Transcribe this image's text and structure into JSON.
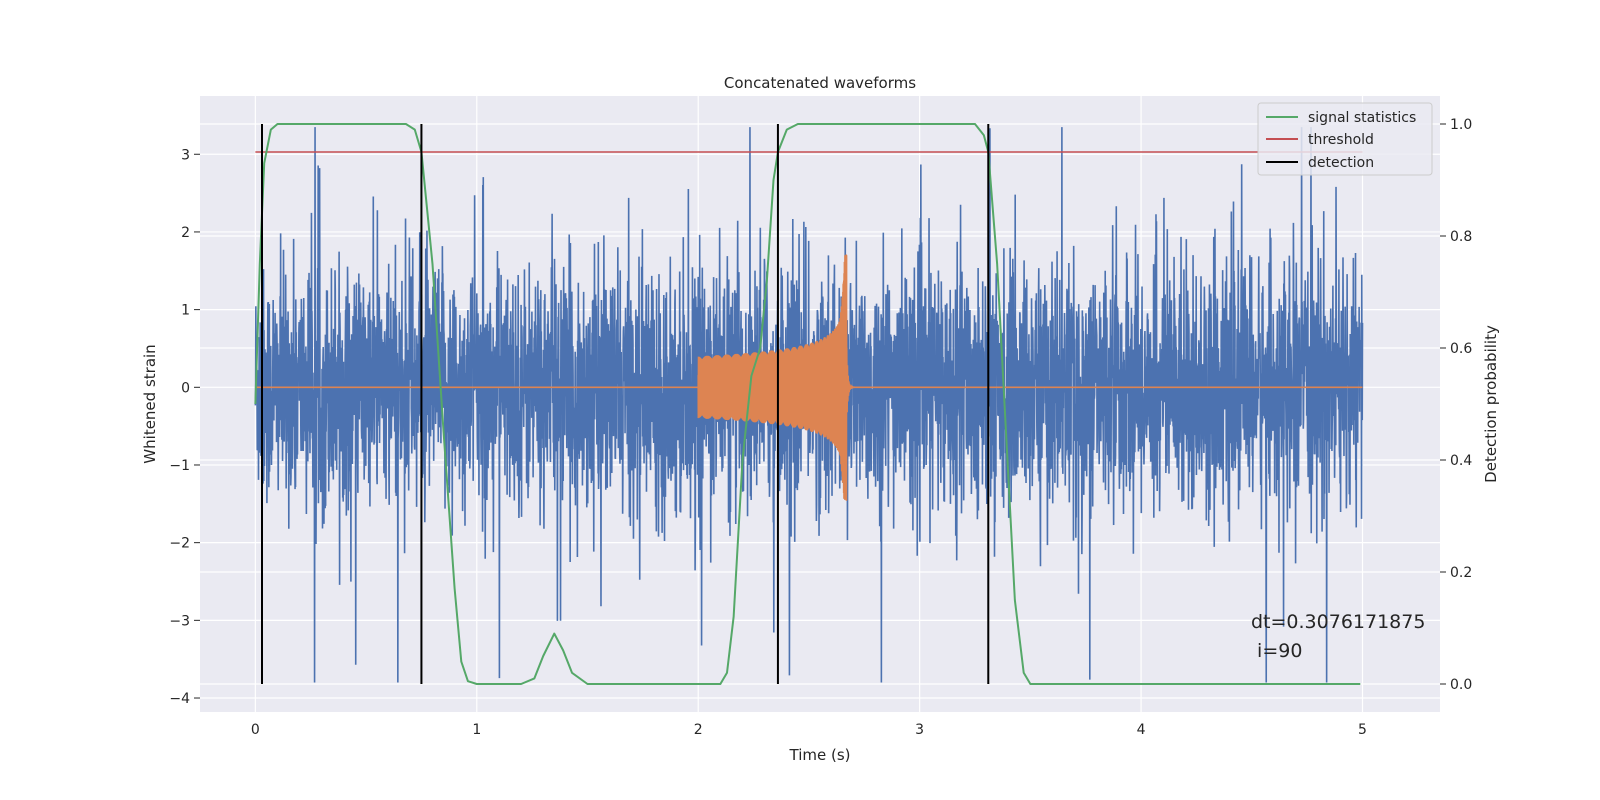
{
  "chart_data": {
    "type": "line",
    "title": "Concatenated waveforms",
    "xlabel": "Time (s)",
    "ylabel": "Whitened strain",
    "y2label": "Detection probability",
    "xlim": [
      -0.25,
      5.35
    ],
    "ylim": [
      -4.18,
      3.75
    ],
    "y2lim": [
      -0.05,
      1.05
    ],
    "xticks": [
      0,
      1,
      2,
      3,
      4,
      5
    ],
    "yticks": [
      -4,
      -3,
      -2,
      -1,
      0,
      1,
      2,
      3
    ],
    "y2ticks": [
      0.0,
      0.2,
      0.4,
      0.6,
      0.8,
      1.0
    ],
    "xtick_labels": [
      "0",
      "1",
      "2",
      "3",
      "4",
      "5"
    ],
    "ytick_labels": [
      "−4",
      "−3",
      "−2",
      "−1",
      "0",
      "1",
      "2",
      "3"
    ],
    "y2tick_labels": [
      "0.0",
      "0.2",
      "0.4",
      "0.6",
      "0.8",
      "1.0"
    ],
    "grid": true,
    "legend_position": "top-right",
    "colors": {
      "noise": "#4c72b0",
      "waveform": "#dd8452",
      "signal_statistics": "#55a868",
      "threshold": "#c44e52",
      "detection": "#000000",
      "plot_background": "#eaeaf2"
    },
    "legend": [
      {
        "label": "signal statistics",
        "color": "#55a868"
      },
      {
        "label": "threshold",
        "color": "#c44e52"
      },
      {
        "label": "detection",
        "color": "#000000"
      }
    ],
    "threshold_value": 0.95,
    "detections": [
      0.03,
      0.75,
      2.36,
      3.31
    ],
    "waveform": {
      "t_start": 2.0,
      "t_merge": 2.67,
      "initial_amplitude": 0.4,
      "peak_amplitude": 1.7
    },
    "signal_statistics": [
      [
        0.0,
        0.5
      ],
      [
        0.02,
        0.75
      ],
      [
        0.04,
        0.93
      ],
      [
        0.07,
        0.99
      ],
      [
        0.1,
        1.0
      ],
      [
        0.68,
        1.0
      ],
      [
        0.72,
        0.99
      ],
      [
        0.75,
        0.95
      ],
      [
        0.8,
        0.75
      ],
      [
        0.85,
        0.45
      ],
      [
        0.9,
        0.17
      ],
      [
        0.93,
        0.04
      ],
      [
        0.96,
        0.005
      ],
      [
        1.0,
        0.0
      ],
      [
        1.2,
        0.0
      ],
      [
        1.26,
        0.01
      ],
      [
        1.3,
        0.05
      ],
      [
        1.35,
        0.09
      ],
      [
        1.39,
        0.06
      ],
      [
        1.43,
        0.02
      ],
      [
        1.5,
        0.0
      ],
      [
        2.1,
        0.0
      ],
      [
        2.13,
        0.02
      ],
      [
        2.16,
        0.12
      ],
      [
        2.2,
        0.4
      ],
      [
        2.24,
        0.55
      ],
      [
        2.28,
        0.6
      ],
      [
        2.31,
        0.72
      ],
      [
        2.34,
        0.9
      ],
      [
        2.36,
        0.95
      ],
      [
        2.4,
        0.99
      ],
      [
        2.45,
        1.0
      ],
      [
        3.25,
        1.0
      ],
      [
        3.29,
        0.98
      ],
      [
        3.31,
        0.95
      ],
      [
        3.35,
        0.75
      ],
      [
        3.39,
        0.45
      ],
      [
        3.43,
        0.15
      ],
      [
        3.47,
        0.02
      ],
      [
        3.5,
        0.0
      ],
      [
        4.99,
        0.0
      ]
    ],
    "annotation": {
      "line1": "dt=0.3076171875",
      "line2": " i=90"
    }
  }
}
